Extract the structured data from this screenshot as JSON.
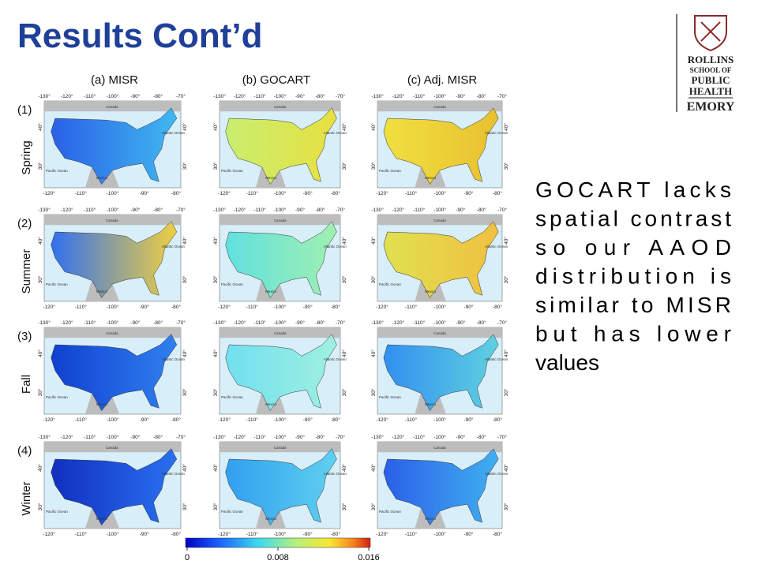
{
  "header": {
    "title": "Results Cont’d"
  },
  "logo": {
    "lines": [
      "ROLLINS",
      "SCHOOL OF",
      "PUBLIC",
      "HEALTH"
    ],
    "university": "EMORY"
  },
  "figure": {
    "columns": [
      "(a) MISR",
      "(b) GOCART",
      "(c) Adj. MISR"
    ],
    "rows": [
      {
        "number": "(1)",
        "season": "Spring"
      },
      {
        "number": "(2)",
        "season": "Summer"
      },
      {
        "number": "(3)",
        "season": "Fall"
      },
      {
        "number": "(4)",
        "season": "Winter"
      }
    ],
    "map_axes": {
      "top_lon": [
        "-130°",
        "-120°",
        "-110°",
        "-100°",
        "-90°",
        "-80°",
        "-70°"
      ],
      "bottom_lon": [
        "-120°",
        "-110°",
        "-100°",
        "-90°",
        "-80°"
      ],
      "lat": [
        "40°",
        "30°"
      ]
    },
    "map_labels": {
      "north": "Canada",
      "south": "Mexico",
      "west": "Pacific Ocean",
      "east": "Atlantic Ocean"
    },
    "colorbar": {
      "range": [
        0,
        0.016
      ],
      "ticks": [
        0,
        0.008,
        0.016
      ]
    }
  },
  "text": {
    "lines": [
      "GOCART lacks",
      "spatial contrast",
      "so our AAOD",
      "distribution is",
      "similar to MISR",
      "but has lower",
      "values"
    ]
  }
}
